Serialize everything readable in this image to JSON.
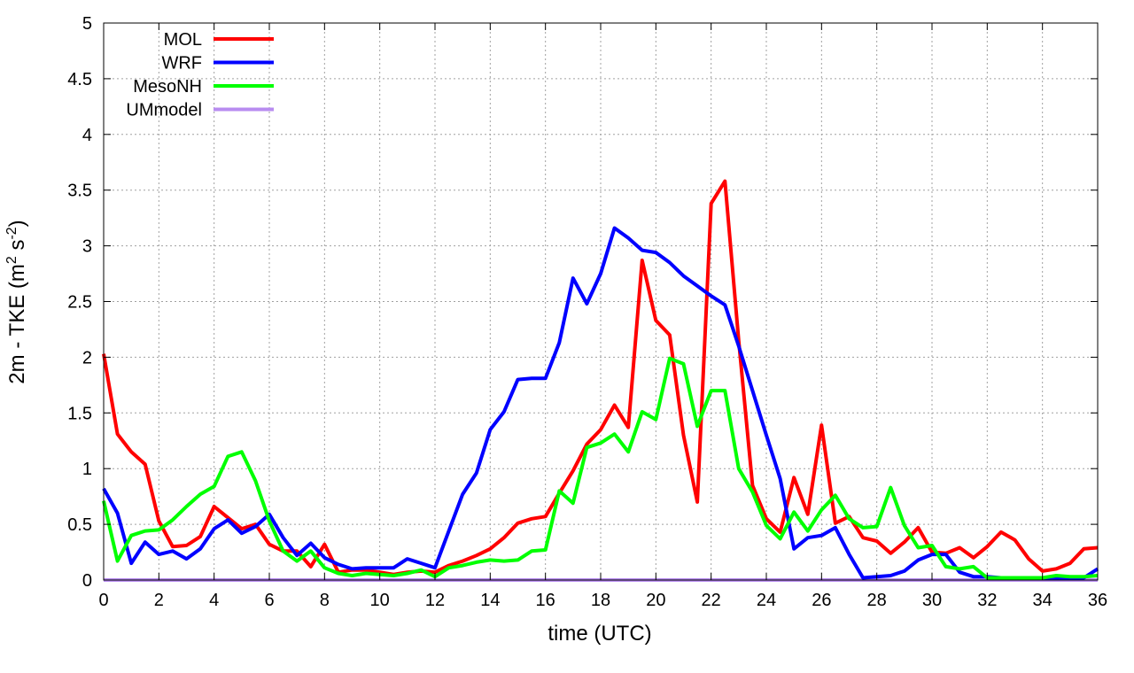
{
  "chart_data": {
    "type": "line",
    "xlabel": "time (UTC)",
    "ylabel": {
      "prefix": "2m - TKE (m",
      "sup1": "2",
      "mid": " s",
      "sup2": "-2",
      "suffix": ")"
    },
    "xlim": [
      0,
      36
    ],
    "ylim": [
      0,
      5
    ],
    "xticks": [
      0,
      2,
      4,
      6,
      8,
      10,
      12,
      14,
      16,
      18,
      20,
      22,
      24,
      26,
      28,
      30,
      32,
      34,
      36
    ],
    "yticks": [
      0,
      0.5,
      1,
      1.5,
      2,
      2.5,
      3,
      3.5,
      4,
      4.5,
      5
    ],
    "xtick_labels": [
      "0",
      "2",
      "4",
      "6",
      "8",
      "10",
      "12",
      "14",
      "16",
      "18",
      "20",
      "22",
      "24",
      "26",
      "28",
      "30",
      "32",
      "34",
      "36"
    ],
    "ytick_labels": [
      "0",
      "0.5",
      "1",
      "1.5",
      "2",
      "2.5",
      "3",
      "3.5",
      "4",
      "4.5",
      "5"
    ],
    "grid": true,
    "legend_position": "top-left",
    "series": [
      {
        "name": "MOL",
        "color": "#ff0000",
        "x": [
          0,
          0.5,
          1,
          1.5,
          2,
          2.5,
          3,
          3.5,
          4,
          4.5,
          5,
          5.5,
          6,
          6.5,
          7,
          7.5,
          8,
          8.5,
          9,
          9.5,
          10,
          10.5,
          11,
          11.5,
          12,
          12.5,
          13,
          13.5,
          14,
          14.5,
          15,
          15.5,
          16,
          16.5,
          17,
          17.5,
          18,
          18.5,
          19,
          19.5,
          20,
          20.5,
          21,
          21.5,
          22,
          22.5,
          23,
          23.5,
          24,
          24.5,
          25,
          25.5,
          26,
          26.5,
          27,
          27.5,
          28,
          28.5,
          29,
          29.5,
          30,
          30.5,
          31,
          31.5,
          32,
          32.5,
          33,
          33.5,
          34,
          34.5,
          35,
          35.5,
          36
        ],
        "values": [
          2.03,
          1.31,
          1.15,
          1.04,
          0.53,
          0.3,
          0.31,
          0.39,
          0.66,
          0.56,
          0.46,
          0.5,
          0.32,
          0.26,
          0.26,
          0.12,
          0.32,
          0.07,
          0.09,
          0.09,
          0.07,
          0.05,
          0.07,
          0.08,
          0.07,
          0.13,
          0.17,
          0.22,
          0.28,
          0.38,
          0.51,
          0.55,
          0.57,
          0.78,
          0.98,
          1.22,
          1.35,
          1.57,
          1.37,
          2.87,
          2.33,
          2.2,
          1.3,
          0.7,
          3.38,
          3.58,
          2.15,
          0.85,
          0.55,
          0.43,
          0.92,
          0.59,
          1.39,
          0.51,
          0.57,
          0.38,
          0.35,
          0.24,
          0.34,
          0.47,
          0.25,
          0.24,
          0.29,
          0.2,
          0.3,
          0.43,
          0.36,
          0.19,
          0.08,
          0.1,
          0.15,
          0.28,
          0.29
        ]
      },
      {
        "name": "WRF",
        "color": "#0000ff",
        "x": [
          0,
          0.5,
          1,
          1.5,
          2,
          2.5,
          3,
          3.5,
          4,
          4.5,
          5,
          5.5,
          6,
          6.5,
          7,
          7.5,
          8,
          8.5,
          9,
          9.5,
          10,
          10.5,
          11,
          11.5,
          12,
          12.5,
          13,
          13.5,
          14,
          14.5,
          15,
          15.5,
          16,
          16.5,
          17,
          17.5,
          18,
          18.5,
          19,
          19.5,
          20,
          20.5,
          21,
          21.5,
          22,
          22.5,
          23,
          23.5,
          24,
          24.5,
          25,
          25.5,
          26,
          26.5,
          27,
          27.5,
          28,
          28.5,
          29,
          29.5,
          30,
          30.5,
          31,
          31.5,
          32,
          32.5,
          33,
          33.5,
          34,
          34.5,
          35,
          35.5,
          36
        ],
        "values": [
          0.82,
          0.6,
          0.15,
          0.34,
          0.23,
          0.26,
          0.19,
          0.28,
          0.46,
          0.54,
          0.42,
          0.48,
          0.59,
          0.38,
          0.22,
          0.33,
          0.2,
          0.14,
          0.1,
          0.11,
          0.11,
          0.11,
          0.19,
          0.15,
          0.11,
          0.44,
          0.77,
          0.96,
          1.35,
          1.51,
          1.8,
          1.81,
          1.81,
          2.13,
          2.71,
          2.48,
          2.75,
          3.16,
          3.07,
          2.96,
          2.94,
          2.85,
          2.73,
          2.64,
          2.55,
          2.47,
          2.1,
          1.7,
          1.3,
          0.91,
          0.28,
          0.38,
          0.4,
          0.47,
          0.23,
          0.02,
          0.03,
          0.04,
          0.08,
          0.18,
          0.23,
          0.23,
          0.07,
          0.03,
          0.03,
          0.02,
          0.02,
          0.02,
          0.02,
          0.02,
          0.02,
          0.02,
          0.1
        ]
      },
      {
        "name": "MesoNH",
        "color": "#00ff00",
        "x": [
          0,
          0.5,
          1,
          1.5,
          2,
          2.5,
          3,
          3.5,
          4,
          4.5,
          5,
          5.5,
          6,
          6.5,
          7,
          7.5,
          8,
          8.5,
          9,
          9.5,
          10,
          10.5,
          11,
          11.5,
          12,
          12.5,
          13,
          13.5,
          14,
          14.5,
          15,
          15.5,
          16,
          16.5,
          17,
          17.5,
          18,
          18.5,
          19,
          19.5,
          20,
          20.5,
          21,
          21.5,
          22,
          22.5,
          23,
          23.5,
          24,
          24.5,
          25,
          25.5,
          26,
          26.5,
          27,
          27.5,
          28,
          28.5,
          29,
          29.5,
          30,
          30.5,
          31,
          31.5,
          32,
          32.5,
          33,
          33.5,
          34,
          34.5,
          35,
          35.5,
          36
        ],
        "values": [
          0.71,
          0.17,
          0.4,
          0.44,
          0.45,
          0.54,
          0.66,
          0.77,
          0.84,
          1.11,
          1.15,
          0.89,
          0.53,
          0.26,
          0.17,
          0.26,
          0.11,
          0.06,
          0.04,
          0.06,
          0.05,
          0.04,
          0.06,
          0.09,
          0.03,
          0.11,
          0.13,
          0.16,
          0.18,
          0.17,
          0.18,
          0.26,
          0.27,
          0.8,
          0.69,
          1.19,
          1.23,
          1.31,
          1.15,
          1.51,
          1.44,
          1.99,
          1.94,
          1.38,
          1.7,
          1.7,
          1.0,
          0.79,
          0.49,
          0.37,
          0.61,
          0.44,
          0.63,
          0.76,
          0.55,
          0.47,
          0.48,
          0.83,
          0.49,
          0.29,
          0.31,
          0.12,
          0.1,
          0.12,
          0.02,
          0.02,
          0.02,
          0.02,
          0.02,
          0.04,
          0.03,
          0.03,
          0.04
        ]
      },
      {
        "name": "UMmodel",
        "color": "#b88cf0",
        "x": [
          0,
          36
        ],
        "values": [
          0,
          0
        ]
      }
    ]
  }
}
